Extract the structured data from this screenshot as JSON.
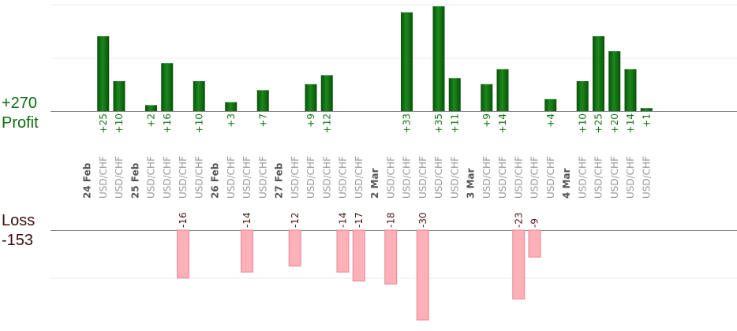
{
  "chart_data": {
    "type": "bar",
    "profit_label": "Profit",
    "loss_label": "Loss",
    "profit_total": "+270",
    "loss_total": "-153",
    "colors": {
      "profit_dark": "#0b4f0b",
      "profit_light": "#1a8a1a",
      "profit_text": "#117711",
      "loss_fill": "#ffb0b8",
      "loss_stroke": "#e08b93",
      "loss_text": "#4a1a1a",
      "total_profit": "#0d6b0d",
      "total_loss": "#3a0d0d",
      "axis": "#888888",
      "grid": "#eeeeee"
    },
    "days": [
      {
        "label": "24 Feb",
        "trades": [
          {
            "symbol": "USD/CHF",
            "value": 25,
            "label": "+25"
          },
          {
            "symbol": "USD/CHF",
            "value": 10,
            "label": "+10"
          }
        ]
      },
      {
        "label": "25 Feb",
        "trades": [
          {
            "symbol": "USD/CHF",
            "value": 2,
            "label": "+2"
          },
          {
            "symbol": "USD/CHF",
            "value": 16,
            "label": "+16"
          },
          {
            "symbol": "USD/CHF",
            "value": -16,
            "label": "-16"
          },
          {
            "symbol": "USD/CHF",
            "value": 10,
            "label": "+10"
          }
        ]
      },
      {
        "label": "26 Feb",
        "trades": [
          {
            "symbol": "USD/CHF",
            "value": 3,
            "label": "+3"
          },
          {
            "symbol": "USD/CHF",
            "value": -14,
            "label": "-14"
          },
          {
            "symbol": "USD/CHF",
            "value": 7,
            "label": "+7"
          }
        ]
      },
      {
        "label": "27 Feb",
        "trades": [
          {
            "symbol": "USD/CHF",
            "value": -12,
            "label": "-12"
          },
          {
            "symbol": "USD/CHF",
            "value": 9,
            "label": "+9"
          },
          {
            "symbol": "USD/CHF",
            "value": 12,
            "label": "+12"
          },
          {
            "symbol": "USD/CHF",
            "value": -14,
            "label": "-14"
          },
          {
            "symbol": "USD/CHF",
            "value": -17,
            "label": "-17"
          }
        ]
      },
      {
        "label": "2 Mar",
        "trades": [
          {
            "symbol": "USD/CHF",
            "value": -18,
            "label": "-18"
          },
          {
            "symbol": "USD/CHF",
            "value": 33,
            "label": "+33"
          },
          {
            "symbol": "USD/CHF",
            "value": -30,
            "label": "-30"
          },
          {
            "symbol": "USD/CHF",
            "value": 35,
            "label": "+35"
          },
          {
            "symbol": "USD/CHF",
            "value": 11,
            "label": "+11"
          }
        ]
      },
      {
        "label": "3 Mar",
        "trades": [
          {
            "symbol": "USD/CHF",
            "value": 9,
            "label": "+9"
          },
          {
            "symbol": "USD/CHF",
            "value": 14,
            "label": "+14"
          },
          {
            "symbol": "USD/CHF",
            "value": -23,
            "label": "-23"
          },
          {
            "symbol": "USD/CHF",
            "value": -9,
            "label": "-9"
          },
          {
            "symbol": "USD/CHF",
            "value": 4,
            "label": "+4"
          }
        ]
      },
      {
        "label": "4 Mar",
        "trades": [
          {
            "symbol": "USD/CHF",
            "value": 10,
            "label": "+10"
          },
          {
            "symbol": "USD/CHF",
            "value": 25,
            "label": "+25"
          },
          {
            "symbol": "USD/CHF",
            "value": 20,
            "label": "+20"
          },
          {
            "symbol": "USD/CHF",
            "value": 14,
            "label": "+14"
          },
          {
            "symbol": "USD/CHF",
            "value": 1,
            "label": "+1"
          }
        ]
      }
    ]
  }
}
